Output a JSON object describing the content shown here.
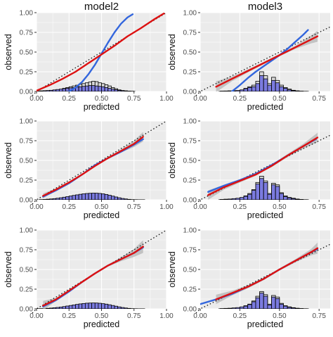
{
  "colors": {
    "panel_bg": "#ebebeb",
    "grid": "#ffffff",
    "diagonal": "#000000",
    "blue_curve": "#3366dd",
    "red_curve": "#dd1111",
    "ribbon": "#b4b4b4",
    "hist_fill": "#7b7be0",
    "hist_outline_fill": "#d9d9d9",
    "text": "#333333",
    "tick_text": "#4d4d4d"
  },
  "chart_data": [
    {
      "type": "line",
      "column": "model2",
      "title": "model2",
      "xlabel": "predicted",
      "ylabel": "observed",
      "xlim": [
        0,
        1
      ],
      "ylim": [
        0,
        1
      ],
      "x_ticks": [
        "0.00",
        "0.25",
        "0.50",
        "0.75",
        "1.00"
      ],
      "y_ticks": [
        "0.00",
        "0.25",
        "0.50",
        "0.75",
        "1.00"
      ],
      "grid": true,
      "reference_line": "diagonal dotted y = x",
      "series": [],
      "blue_curve": {
        "x": [
          0.25,
          0.3,
          0.35,
          0.4,
          0.45,
          0.5,
          0.55,
          0.6,
          0.65,
          0.7,
          0.74
        ],
        "y": [
          0.0,
          0.05,
          0.12,
          0.22,
          0.34,
          0.48,
          0.62,
          0.75,
          0.86,
          0.94,
          0.98
        ]
      },
      "red_curve": {
        "x": [
          0.0,
          0.1,
          0.2,
          0.3,
          0.4,
          0.5,
          0.6,
          0.7,
          0.8,
          0.9,
          0.98
        ],
        "y": [
          0.01,
          0.08,
          0.16,
          0.25,
          0.36,
          0.47,
          0.58,
          0.7,
          0.8,
          0.91,
          0.99
        ]
      },
      "histogram": {
        "bin_width": 0.025,
        "start": 0.0,
        "counts_total": [
          0.005,
          0.008,
          0.01,
          0.012,
          0.015,
          0.02,
          0.025,
          0.03,
          0.04,
          0.05,
          0.06,
          0.07,
          0.08,
          0.09,
          0.1,
          0.11,
          0.12,
          0.13,
          0.125,
          0.11,
          0.1,
          0.085,
          0.07,
          0.05,
          0.035,
          0.02,
          0.012,
          0.008,
          0.005,
          0.003
        ],
        "counts_filled": [
          0.005,
          0.008,
          0.01,
          0.012,
          0.015,
          0.02,
          0.025,
          0.03,
          0.035,
          0.04,
          0.045,
          0.05,
          0.055,
          0.06,
          0.065,
          0.07,
          0.075,
          0.075,
          0.07,
          0.065,
          0.06,
          0.05,
          0.04,
          0.03,
          0.022,
          0.014,
          0.01,
          0.006,
          0.004,
          0.002
        ]
      }
    },
    {
      "type": "line",
      "column": "model3",
      "title": "model3",
      "xlabel": "predicted",
      "ylabel": "observed",
      "xlim": [
        0,
        0.82
      ],
      "ylim": [
        0,
        1
      ],
      "x_ticks": [
        "0.00",
        "0.25",
        "0.50",
        "0.75"
      ],
      "y_ticks": [
        "0.00",
        "0.25",
        "0.50",
        "0.75",
        "1.00"
      ],
      "grid": true,
      "reference_line": "diagonal dotted y = x",
      "series": [],
      "blue_curve": {
        "x": [
          0.2,
          0.25,
          0.3,
          0.35,
          0.4,
          0.45,
          0.5,
          0.55,
          0.6,
          0.65,
          0.68
        ],
        "y": [
          0.0,
          0.08,
          0.17,
          0.25,
          0.32,
          0.39,
          0.46,
          0.54,
          0.63,
          0.72,
          0.78
        ]
      },
      "red_curve": {
        "x": [
          0.1,
          0.2,
          0.3,
          0.4,
          0.5,
          0.6,
          0.7,
          0.74
        ],
        "y": [
          0.06,
          0.16,
          0.26,
          0.36,
          0.46,
          0.56,
          0.66,
          0.7
        ]
      },
      "ribbon_halfwidth": [
        0.07,
        0.03,
        0.02,
        0.015,
        0.015,
        0.02,
        0.05,
        0.07
      ],
      "histogram": {
        "bin_width": 0.025,
        "start": 0.125,
        "counts_total": [
          0.005,
          0.006,
          0.008,
          0.01,
          0.012,
          0.02,
          0.04,
          0.06,
          0.08,
          0.13,
          0.25,
          0.2,
          0.1,
          0.18,
          0.14,
          0.08,
          0.05,
          0.03,
          0.015,
          0.008,
          0.004,
          0.002
        ],
        "counts_filled": [
          0.005,
          0.006,
          0.008,
          0.01,
          0.012,
          0.02,
          0.035,
          0.05,
          0.06,
          0.1,
          0.2,
          0.16,
          0.08,
          0.14,
          0.11,
          0.06,
          0.04,
          0.02,
          0.01,
          0.006,
          0.003,
          0.002
        ]
      }
    },
    {
      "type": "line",
      "column": "model2",
      "title": "",
      "xlabel": "predicted",
      "ylabel": "observed",
      "xlim": [
        0,
        1
      ],
      "ylim": [
        0,
        1
      ],
      "x_ticks": [
        "0.00",
        "0.25",
        "0.50",
        "0.75",
        "1.00"
      ],
      "y_ticks": [
        "0.00",
        "0.25",
        "0.50",
        "0.75",
        "1.00"
      ],
      "grid": true,
      "reference_line": "diagonal dotted y = x",
      "series": [],
      "blue_curve": {
        "x": [
          0.05,
          0.15,
          0.25,
          0.35,
          0.45,
          0.55,
          0.65,
          0.75,
          0.82
        ],
        "y": [
          0.04,
          0.12,
          0.21,
          0.32,
          0.44,
          0.53,
          0.61,
          0.7,
          0.77
        ]
      },
      "red_curve": {
        "x": [
          0.05,
          0.15,
          0.25,
          0.35,
          0.45,
          0.55,
          0.65,
          0.75,
          0.82
        ],
        "y": [
          0.05,
          0.13,
          0.22,
          0.32,
          0.43,
          0.53,
          0.62,
          0.71,
          0.8
        ]
      },
      "ribbon_halfwidth": [
        0.03,
        0.015,
        0.01,
        0.01,
        0.01,
        0.012,
        0.02,
        0.04,
        0.06
      ],
      "histogram": {
        "bin_width": 0.025,
        "start": 0.025,
        "counts_total": [
          0.003,
          0.005,
          0.008,
          0.011,
          0.015,
          0.02,
          0.026,
          0.033,
          0.04,
          0.048,
          0.056,
          0.063,
          0.07,
          0.076,
          0.08,
          0.083,
          0.085,
          0.084,
          0.081,
          0.076,
          0.068,
          0.058,
          0.047,
          0.036,
          0.026,
          0.017,
          0.011,
          0.006,
          0.003,
          0.002,
          0.001,
          0.001
        ],
        "counts_filled": [
          0.003,
          0.005,
          0.008,
          0.011,
          0.015,
          0.02,
          0.026,
          0.033,
          0.04,
          0.048,
          0.056,
          0.063,
          0.07,
          0.076,
          0.08,
          0.083,
          0.085,
          0.084,
          0.081,
          0.076,
          0.068,
          0.058,
          0.047,
          0.036,
          0.026,
          0.017,
          0.011,
          0.006,
          0.003,
          0.002,
          0.001,
          0.001
        ]
      }
    },
    {
      "type": "line",
      "column": "model3",
      "title": "",
      "xlabel": "predicted",
      "ylabel": "observed",
      "xlim": [
        0,
        0.82
      ],
      "ylim": [
        0,
        1
      ],
      "x_ticks": [
        "0.00",
        "0.25",
        "0.50",
        "0.75"
      ],
      "y_ticks": [
        "0.00",
        "0.25",
        "0.50",
        "0.75",
        "1.00"
      ],
      "grid": true,
      "reference_line": "diagonal dotted y = x",
      "series": [],
      "blue_curve": {
        "x": [
          0.05,
          0.15,
          0.25,
          0.35,
          0.45,
          0.55,
          0.65,
          0.73
        ],
        "y": [
          0.1,
          0.18,
          0.25,
          0.33,
          0.44,
          0.56,
          0.68,
          0.77
        ]
      },
      "red_curve": {
        "x": [
          0.05,
          0.15,
          0.25,
          0.35,
          0.45,
          0.55,
          0.65,
          0.74
        ],
        "y": [
          0.06,
          0.16,
          0.24,
          0.32,
          0.43,
          0.56,
          0.68,
          0.79
        ]
      },
      "ribbon_halfwidth": [
        0.06,
        0.03,
        0.02,
        0.015,
        0.015,
        0.02,
        0.03,
        0.06
      ],
      "histogram": {
        "bin_width": 0.025,
        "start": 0.125,
        "counts_total": [
          0.005,
          0.008,
          0.01,
          0.015,
          0.02,
          0.03,
          0.05,
          0.08,
          0.13,
          0.22,
          0.3,
          0.24,
          0.08,
          0.21,
          0.19,
          0.09,
          0.05,
          0.03,
          0.02,
          0.01,
          0.005,
          0.002
        ],
        "counts_filled": [
          0.005,
          0.008,
          0.01,
          0.015,
          0.02,
          0.03,
          0.045,
          0.07,
          0.12,
          0.2,
          0.27,
          0.22,
          0.07,
          0.19,
          0.17,
          0.08,
          0.04,
          0.025,
          0.015,
          0.008,
          0.004,
          0.002
        ]
      }
    },
    {
      "type": "line",
      "column": "model2",
      "title": "",
      "xlabel": "predicted",
      "ylabel": "observed",
      "xlim": [
        0,
        1
      ],
      "ylim": [
        0,
        1
      ],
      "x_ticks": [
        "0.00",
        "0.25",
        "0.50",
        "0.75",
        "1.00"
      ],
      "y_ticks": [
        "0.00",
        "0.25",
        "0.50",
        "0.75",
        "1.00"
      ],
      "grid": true,
      "reference_line": "diagonal dotted y = x",
      "series": [],
      "blue_curve": {
        "x": [
          0.05,
          0.15,
          0.25,
          0.35,
          0.45,
          0.55,
          0.65,
          0.75,
          0.82
        ],
        "y": [
          0.03,
          0.11,
          0.22,
          0.34,
          0.45,
          0.55,
          0.63,
          0.71,
          0.78
        ]
      },
      "red_curve": {
        "x": [
          0.05,
          0.15,
          0.25,
          0.35,
          0.45,
          0.55,
          0.65,
          0.75,
          0.82
        ],
        "y": [
          0.04,
          0.12,
          0.23,
          0.34,
          0.45,
          0.55,
          0.63,
          0.71,
          0.79
        ]
      },
      "ribbon_halfwidth": [
        0.06,
        0.02,
        0.01,
        0.01,
        0.01,
        0.012,
        0.025,
        0.05,
        0.08
      ],
      "histogram": {
        "bin_width": 0.025,
        "start": 0.0,
        "counts_total": [
          0.002,
          0.003,
          0.005,
          0.007,
          0.01,
          0.014,
          0.018,
          0.023,
          0.029,
          0.036,
          0.043,
          0.05,
          0.057,
          0.063,
          0.068,
          0.072,
          0.074,
          0.075,
          0.074,
          0.071,
          0.066,
          0.06,
          0.052,
          0.043,
          0.034,
          0.025,
          0.017,
          0.011,
          0.006,
          0.003,
          0.002,
          0.001,
          0.001
        ],
        "counts_filled": [
          0.002,
          0.003,
          0.005,
          0.007,
          0.01,
          0.014,
          0.018,
          0.023,
          0.029,
          0.036,
          0.043,
          0.05,
          0.057,
          0.063,
          0.068,
          0.072,
          0.074,
          0.075,
          0.074,
          0.071,
          0.066,
          0.06,
          0.052,
          0.043,
          0.034,
          0.025,
          0.017,
          0.011,
          0.006,
          0.003,
          0.002,
          0.001,
          0.001
        ]
      }
    },
    {
      "type": "line",
      "column": "model3",
      "title": "",
      "xlabel": "predicted",
      "ylabel": "observed",
      "xlim": [
        0,
        0.82
      ],
      "ylim": [
        0,
        1
      ],
      "x_ticks": [
        "0.00",
        "0.25",
        "0.50",
        "0.75"
      ],
      "y_ticks": [
        "0.00",
        "0.25",
        "0.50",
        "0.75",
        "1.00"
      ],
      "grid": true,
      "reference_line": "diagonal dotted y = x",
      "series": [],
      "blue_curve": {
        "x": [
          0.0,
          0.1,
          0.2,
          0.3,
          0.4,
          0.5,
          0.6,
          0.7,
          0.74
        ],
        "y": [
          0.06,
          0.12,
          0.19,
          0.28,
          0.38,
          0.5,
          0.61,
          0.72,
          0.76
        ]
      },
      "red_curve": {
        "x": [
          0.1,
          0.2,
          0.3,
          0.4,
          0.5,
          0.6,
          0.7,
          0.74
        ],
        "y": [
          0.12,
          0.2,
          0.28,
          0.38,
          0.5,
          0.61,
          0.72,
          0.77
        ]
      },
      "ribbon_halfwidth": [
        0.06,
        0.03,
        0.02,
        0.015,
        0.015,
        0.02,
        0.04,
        0.07
      ],
      "histogram": {
        "bin_width": 0.025,
        "start": 0.125,
        "counts_total": [
          0.004,
          0.006,
          0.008,
          0.012,
          0.016,
          0.025,
          0.04,
          0.06,
          0.1,
          0.16,
          0.22,
          0.18,
          0.06,
          0.17,
          0.15,
          0.07,
          0.04,
          0.025,
          0.015,
          0.008,
          0.004,
          0.002
        ],
        "counts_filled": [
          0.004,
          0.006,
          0.008,
          0.012,
          0.016,
          0.025,
          0.035,
          0.055,
          0.09,
          0.14,
          0.2,
          0.16,
          0.05,
          0.15,
          0.13,
          0.06,
          0.035,
          0.02,
          0.012,
          0.006,
          0.003,
          0.002
        ]
      }
    }
  ]
}
